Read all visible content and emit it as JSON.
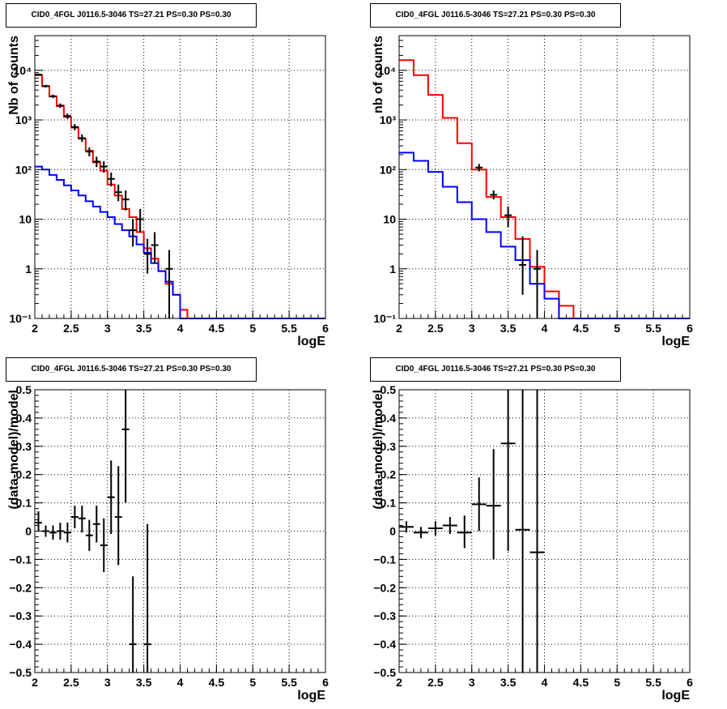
{
  "chart_data": [
    {
      "type": "line",
      "title": "CID0_4FGL J0116.5-3046 TS=27.21 PS=0.30 PS=0.30",
      "xlabel": "logE",
      "ylabel": "Nb of counts",
      "xlim": [
        2,
        6
      ],
      "ylim": [
        0.1,
        50000
      ],
      "ylog": true,
      "grid": true,
      "x_ticks": [
        "2",
        "2.5",
        "3",
        "3.5",
        "4",
        "4.5",
        "5",
        "5.5",
        "6"
      ],
      "y_ticks": [
        "10^-1 → 10^4"
      ],
      "y_tick_labels": [
        "10⁻¹",
        "1",
        "10",
        "10²",
        "10³",
        "10⁴"
      ],
      "bin_edges": [
        2.0,
        2.1,
        2.2,
        2.3,
        2.4,
        2.5,
        2.6,
        2.7,
        2.8,
        2.9,
        3.0,
        3.1,
        3.2,
        3.3,
        3.4,
        3.5,
        3.6,
        3.7,
        3.8,
        3.9,
        4.0,
        4.1,
        4.2,
        4.3,
        4.4,
        4.5,
        4.6,
        4.7,
        4.8,
        4.9,
        5.0,
        5.1,
        5.2,
        5.3,
        5.4,
        5.5,
        5.6,
        5.7,
        5.8,
        5.9,
        6.0
      ],
      "series": [
        {
          "color": "#ff0000",
          "values": [
            8000,
            4800,
            3000,
            1900,
            1150,
            700,
            420,
            240,
            140,
            95,
            50,
            30,
            16,
            11,
            5.5,
            2.6,
            1.6,
            0.9,
            0.5,
            0.3,
            0.15,
            0.1,
            0.1,
            0.1,
            0.1,
            0.1,
            0.1,
            0.1,
            0.1,
            0.1,
            0.1,
            0.1,
            0.1,
            0.1,
            0.1,
            0.1,
            0.1,
            0.1,
            0.1,
            0.1
          ]
        },
        {
          "color": "#0000ff",
          "values": [
            115,
            100,
            78,
            62,
            48,
            38,
            30,
            23,
            18,
            14,
            11,
            8,
            6,
            4.5,
            3.1,
            2.1,
            1.3,
            0.9,
            0.55,
            0.3,
            0.1,
            0.1,
            0.1,
            0.1,
            0.1,
            0.1,
            0.1,
            0.1,
            0.1,
            0.1,
            0.1,
            0.1,
            0.1,
            0.1,
            0.1,
            0.1,
            0.1,
            0.1,
            0.1,
            0.1
          ]
        }
      ],
      "points": [
        {
          "x": 2.05,
          "y": 8200,
          "lo": 7800,
          "hi": 8600
        },
        {
          "x": 2.15,
          "y": 4800,
          "lo": 4500,
          "hi": 5100
        },
        {
          "x": 2.25,
          "y": 3000,
          "lo": 2750,
          "hi": 3250
        },
        {
          "x": 2.35,
          "y": 1950,
          "lo": 1750,
          "hi": 2150
        },
        {
          "x": 2.45,
          "y": 1200,
          "lo": 1050,
          "hi": 1350
        },
        {
          "x": 2.55,
          "y": 720,
          "lo": 620,
          "hi": 830
        },
        {
          "x": 2.65,
          "y": 430,
          "lo": 360,
          "hi": 510
        },
        {
          "x": 2.75,
          "y": 230,
          "lo": 185,
          "hi": 280
        },
        {
          "x": 2.85,
          "y": 145,
          "lo": 112,
          "hi": 182
        },
        {
          "x": 2.95,
          "y": 115,
          "lo": 87,
          "hi": 147
        },
        {
          "x": 3.05,
          "y": 65,
          "lo": 46,
          "hi": 87
        },
        {
          "x": 3.15,
          "y": 35,
          "lo": 23,
          "hi": 50
        },
        {
          "x": 3.25,
          "y": 25,
          "lo": 15,
          "hi": 38
        },
        {
          "x": 3.35,
          "y": 6,
          "lo": 2.8,
          "hi": 10
        },
        {
          "x": 3.45,
          "y": 10,
          "lo": 5.5,
          "hi": 16
        },
        {
          "x": 3.55,
          "y": 2,
          "lo": 0.8,
          "hi": 4
        },
        {
          "x": 3.65,
          "y": 3,
          "lo": 1.3,
          "hi": 5.5
        },
        {
          "x": 3.85,
          "y": 1,
          "lo": 0.1,
          "hi": 2.4
        }
      ]
    },
    {
      "type": "line",
      "title": "CID0_4FGL J0116.5-3046 TS=27.21 PS=0.30 PS=0.30",
      "xlabel": "logE",
      "ylabel": "nb of counts",
      "xlim": [
        2,
        6
      ],
      "ylim": [
        0.1,
        50000
      ],
      "ylog": true,
      "grid": true,
      "x_ticks": [
        "2",
        "2.5",
        "3",
        "3.5",
        "4",
        "4.5",
        "5",
        "5.5",
        "6"
      ],
      "y_tick_labels": [
        "10⁻¹",
        "1",
        "10",
        "10²",
        "10³",
        "10⁴"
      ],
      "bin_edges": [
        2.0,
        2.2,
        2.4,
        2.6,
        2.8,
        3.0,
        3.2,
        3.4,
        3.6,
        3.8,
        4.0,
        4.2,
        4.4,
        4.6,
        4.8,
        5.0,
        5.2,
        5.4,
        5.6,
        5.8,
        6.0
      ],
      "series": [
        {
          "color": "#ff0000",
          "values": [
            16000,
            8000,
            3200,
            1100,
            340,
            100,
            28,
            11,
            4,
            1.1,
            0.35,
            0.18,
            0.1,
            0.1,
            0.1,
            0.1,
            0.1,
            0.1,
            0.1,
            0.1
          ]
        },
        {
          "color": "#0000ff",
          "values": [
            220,
            150,
            90,
            45,
            22,
            10,
            5.5,
            2.8,
            1.5,
            0.5,
            0.25,
            0.1,
            0.1,
            0.1,
            0.1,
            0.1,
            0.1,
            0.1,
            0.1,
            0.1
          ]
        }
      ],
      "points": [
        {
          "x": 3.1,
          "y": 110,
          "lo": 92,
          "hi": 130
        },
        {
          "x": 3.3,
          "y": 31,
          "lo": 25,
          "hi": 38
        },
        {
          "x": 3.5,
          "y": 12,
          "lo": 7,
          "hi": 18
        },
        {
          "x": 3.7,
          "y": 1.2,
          "lo": 0.3,
          "hi": 4.5
        },
        {
          "x": 3.9,
          "y": 1,
          "lo": 0.1,
          "hi": 2.4
        }
      ]
    },
    {
      "type": "scatter",
      "title": "CID0_4FGL J0116.5-3046 TS=27.21 PS=0.30 PS=0.30",
      "xlabel": "logE",
      "ylabel": "(data-model)/model",
      "xlim": [
        2,
        6
      ],
      "ylim": [
        -0.5,
        0.5
      ],
      "grid": true,
      "x_ticks": [
        "2",
        "2.5",
        "3",
        "3.5",
        "4",
        "4.5",
        "5",
        "5.5",
        "6"
      ],
      "y_ticks": [
        "−0.5",
        "−0.4",
        "−0.3",
        "−0.2",
        "−0.1",
        "0",
        "0.1",
        "0.2",
        "0.3",
        "0.4",
        "0.5"
      ],
      "points": [
        {
          "x": 2.05,
          "y": 0.03,
          "lo": 0.0,
          "hi": 0.07,
          "xerr": 0.05
        },
        {
          "x": 2.15,
          "y": 0.0,
          "lo": -0.02,
          "hi": 0.02,
          "xerr": 0.05
        },
        {
          "x": 2.25,
          "y": -0.005,
          "lo": -0.03,
          "hi": 0.02,
          "xerr": 0.05
        },
        {
          "x": 2.35,
          "y": 0.0,
          "lo": -0.03,
          "hi": 0.03,
          "xerr": 0.05
        },
        {
          "x": 2.45,
          "y": -0.005,
          "lo": -0.04,
          "hi": 0.03,
          "xerr": 0.05
        },
        {
          "x": 2.55,
          "y": 0.05,
          "lo": 0.01,
          "hi": 0.09,
          "xerr": 0.05
        },
        {
          "x": 2.65,
          "y": 0.045,
          "lo": -0.005,
          "hi": 0.09,
          "xerr": 0.05
        },
        {
          "x": 2.75,
          "y": -0.015,
          "lo": -0.07,
          "hi": 0.04,
          "xerr": 0.05
        },
        {
          "x": 2.85,
          "y": 0.025,
          "lo": -0.04,
          "hi": 0.09,
          "xerr": 0.05
        },
        {
          "x": 2.95,
          "y": -0.05,
          "lo": -0.145,
          "hi": 0.045,
          "xerr": 0.05
        },
        {
          "x": 3.05,
          "y": 0.12,
          "lo": -0.01,
          "hi": 0.25,
          "xerr": 0.05
        },
        {
          "x": 3.15,
          "y": 0.05,
          "lo": -0.12,
          "hi": 0.23,
          "xerr": 0.05
        },
        {
          "x": 3.25,
          "y": 0.36,
          "lo": 0.1,
          "hi": 0.5,
          "xerr": 0.05
        },
        {
          "x": 3.35,
          "y": -0.4,
          "lo": -0.5,
          "hi": -0.16,
          "xerr": 0.05
        },
        {
          "x": 3.55,
          "y": -0.4,
          "lo": -0.5,
          "hi": 0.025,
          "xerr": 0.05
        }
      ]
    },
    {
      "type": "scatter",
      "title": "CID0_4FGL J0116.5-3046 TS=27.21 PS=0.30 PS=0.30",
      "xlabel": "logE",
      "ylabel": "(data-model)/model",
      "xlim": [
        2,
        6
      ],
      "ylim": [
        -0.5,
        0.5
      ],
      "grid": true,
      "x_ticks": [
        "2",
        "2.5",
        "3",
        "3.5",
        "4",
        "4.5",
        "5",
        "5.5",
        "6"
      ],
      "y_ticks": [
        "−0.5",
        "−0.4",
        "−0.3",
        "−0.2",
        "−0.1",
        "0",
        "0.1",
        "0.2",
        "0.3",
        "0.4",
        "0.5"
      ],
      "points": [
        {
          "x": 2.1,
          "y": 0.015,
          "lo": -0.005,
          "hi": 0.035,
          "xerr": 0.1
        },
        {
          "x": 2.3,
          "y": -0.005,
          "lo": -0.025,
          "hi": 0.015,
          "xerr": 0.1
        },
        {
          "x": 2.5,
          "y": 0.01,
          "lo": -0.015,
          "hi": 0.035,
          "xerr": 0.1
        },
        {
          "x": 2.7,
          "y": 0.02,
          "lo": -0.01,
          "hi": 0.05,
          "xerr": 0.1
        },
        {
          "x": 2.9,
          "y": -0.005,
          "lo": -0.06,
          "hi": 0.055,
          "xerr": 0.1
        },
        {
          "x": 3.1,
          "y": 0.095,
          "lo": 0.0,
          "hi": 0.19,
          "xerr": 0.1
        },
        {
          "x": 3.3,
          "y": 0.09,
          "lo": -0.1,
          "hi": 0.29,
          "xerr": 0.1
        },
        {
          "x": 3.5,
          "y": 0.31,
          "lo": -0.07,
          "hi": 0.5,
          "xerr": 0.1
        },
        {
          "x": 3.7,
          "y": 0.005,
          "lo": -0.5,
          "hi": 0.5,
          "xerr": 0.1
        },
        {
          "x": 3.9,
          "y": -0.075,
          "lo": -0.5,
          "hi": 0.5,
          "xerr": 0.1
        }
      ]
    }
  ]
}
